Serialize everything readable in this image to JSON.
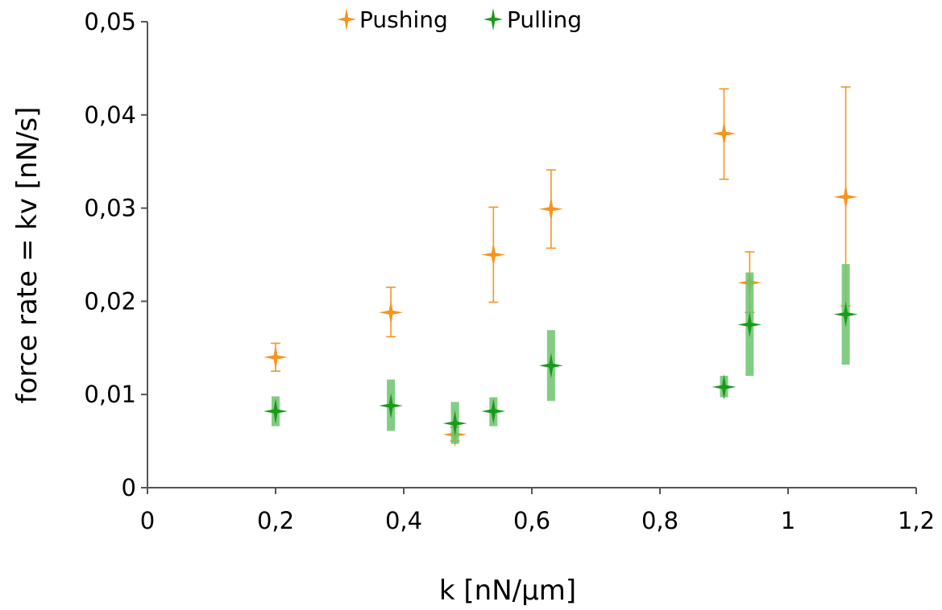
{
  "chart_data": {
    "type": "scatter",
    "xlabel": "k [nN/µm]",
    "ylabel": "force rate = kv  [nN/s]",
    "xlim": [
      0,
      1.2
    ],
    "ylim": [
      0,
      0.05
    ],
    "x_ticks": [
      "0",
      "0,2",
      "0,4",
      "0,6",
      "0,8",
      "1",
      "1,2"
    ],
    "y_ticks": [
      "0",
      "0,01",
      "0,02",
      "0,03",
      "0,04",
      "0,05"
    ],
    "grid": false,
    "legend_position": "top-center",
    "series": [
      {
        "name": "Pushing",
        "color": "#f7941d",
        "marker": "four-point-star",
        "points": [
          {
            "x": 0.2,
            "y": 0.014,
            "err_low": 0.0125,
            "err_high": 0.0155
          },
          {
            "x": 0.38,
            "y": 0.0188,
            "err_low": 0.0162,
            "err_high": 0.0215
          },
          {
            "x": 0.48,
            "y": 0.0057,
            "err_low": 0.005,
            "err_high": 0.0065
          },
          {
            "x": 0.54,
            "y": 0.025,
            "err_low": 0.0199,
            "err_high": 0.0301
          },
          {
            "x": 0.63,
            "y": 0.0299,
            "err_low": 0.0257,
            "err_high": 0.0341
          },
          {
            "x": 0.9,
            "y": 0.038,
            "err_low": 0.0331,
            "err_high": 0.0428
          },
          {
            "x": 0.94,
            "y": 0.022,
            "err_low": 0.0188,
            "err_high": 0.0253
          },
          {
            "x": 1.09,
            "y": 0.0312,
            "err_low": 0.0195,
            "err_high": 0.043
          }
        ]
      },
      {
        "name": "Pulling",
        "color": "#1a9a1a",
        "errbar_color": "#6cc46c",
        "marker": "four-point-star",
        "points": [
          {
            "x": 0.2,
            "y": 0.0082,
            "err_low": 0.0066,
            "err_high": 0.0098
          },
          {
            "x": 0.38,
            "y": 0.0088,
            "err_low": 0.0061,
            "err_high": 0.0116
          },
          {
            "x": 0.48,
            "y": 0.0069,
            "err_low": 0.0047,
            "err_high": 0.0092
          },
          {
            "x": 0.54,
            "y": 0.0082,
            "err_low": 0.0066,
            "err_high": 0.0097
          },
          {
            "x": 0.63,
            "y": 0.0131,
            "err_low": 0.0093,
            "err_high": 0.0169
          },
          {
            "x": 0.9,
            "y": 0.0108,
            "err_low": 0.0097,
            "err_high": 0.012
          },
          {
            "x": 0.94,
            "y": 0.0175,
            "err_low": 0.012,
            "err_high": 0.0231
          },
          {
            "x": 1.09,
            "y": 0.0186,
            "err_low": 0.0132,
            "err_high": 0.024
          }
        ]
      }
    ]
  }
}
